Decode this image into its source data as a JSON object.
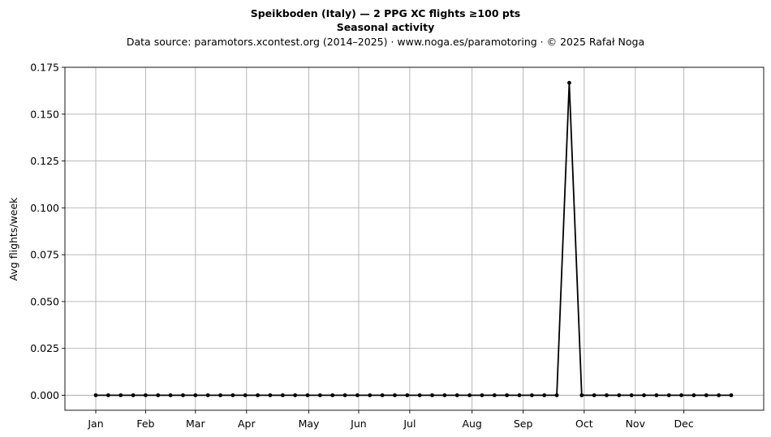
{
  "chart_data": {
    "type": "line",
    "title_lines": [
      "Speikboden (Italy)  —  2 PPG XC flights ≥100 pts",
      "Seasonal activity"
    ],
    "subtitle": "Data source: paramotors.xcontest.org (2014–2025)  ·  www.noga.es/paramotoring  ·  © 2025 Rafał Noga",
    "ylabel": "Avg flights/week",
    "xlabel": "",
    "x_domain": [
      1,
      53
    ],
    "ylim": [
      -0.008,
      0.175
    ],
    "y_ticks": [
      0.0,
      0.025,
      0.05,
      0.075,
      0.1,
      0.125,
      0.15,
      0.175
    ],
    "y_tick_labels": [
      "0.000",
      "0.025",
      "0.050",
      "0.075",
      "0.100",
      "0.125",
      "0.150",
      "0.175"
    ],
    "x_ticks": [
      {
        "label": "Jan",
        "week": 3.4
      },
      {
        "label": "Feb",
        "week": 7.4
      },
      {
        "label": "Mar",
        "week": 11.4
      },
      {
        "label": "Apr",
        "week": 15.5
      },
      {
        "label": "May",
        "week": 20.5
      },
      {
        "label": "Jun",
        "week": 24.5
      },
      {
        "label": "Jul",
        "week": 28.6
      },
      {
        "label": "Aug",
        "week": 33.6
      },
      {
        "label": "Sep",
        "week": 37.7
      },
      {
        "label": "Oct",
        "week": 42.6
      },
      {
        "label": "Nov",
        "week": 46.7
      },
      {
        "label": "Dec",
        "week": 50.6
      }
    ],
    "grid": true,
    "series": [
      {
        "color": "#000000",
        "x": [
          3.4,
          4.4,
          5.4,
          6.4,
          7.4,
          8.4,
          9.4,
          10.4,
          11.4,
          12.4,
          13.4,
          14.4,
          15.4,
          16.4,
          17.4,
          18.4,
          19.4,
          20.4,
          21.4,
          22.4,
          23.4,
          24.4,
          25.4,
          26.4,
          27.4,
          28.4,
          29.4,
          30.4,
          31.4,
          32.4,
          33.4,
          34.4,
          35.4,
          36.4,
          37.4,
          38.4,
          39.4,
          40.4,
          41.4,
          42.4,
          43.4,
          44.4,
          45.4,
          46.4,
          47.4,
          48.4,
          49.4,
          50.4,
          51.4,
          52.4,
          53.4,
          54.4
        ],
        "values": [
          0,
          0,
          0,
          0,
          0,
          0,
          0,
          0,
          0,
          0,
          0,
          0,
          0,
          0,
          0,
          0,
          0,
          0,
          0,
          0,
          0,
          0,
          0,
          0,
          0,
          0,
          0,
          0,
          0,
          0,
          0,
          0,
          0,
          0,
          0,
          0,
          0,
          0,
          0.1667,
          0,
          0,
          0,
          0,
          0,
          0,
          0,
          0,
          0,
          0,
          0,
          0,
          0
        ]
      }
    ]
  }
}
